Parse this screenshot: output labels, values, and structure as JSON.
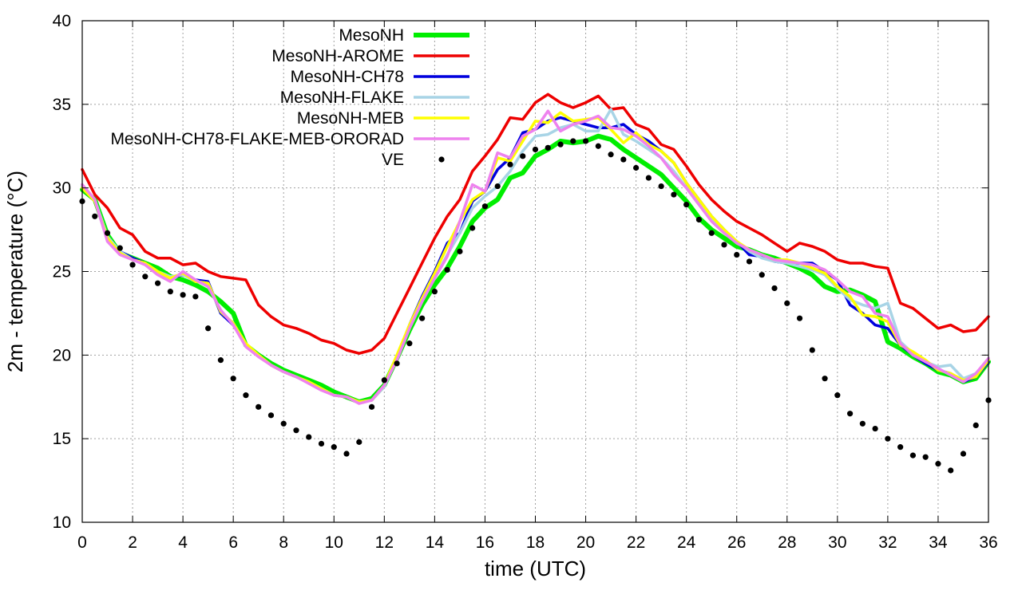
{
  "chart_data": {
    "type": "line",
    "xlabel": "time (UTC)",
    "ylabel": "2m - temperature (°C)",
    "xlim": [
      0,
      36
    ],
    "ylim": [
      10,
      40
    ],
    "xticks": [
      0,
      2,
      4,
      6,
      8,
      10,
      12,
      14,
      16,
      18,
      20,
      22,
      24,
      26,
      28,
      30,
      32,
      34,
      36
    ],
    "yticks": [
      10,
      15,
      20,
      25,
      30,
      35,
      40
    ],
    "grid": true,
    "legend_position": "top-center",
    "series": [
      {
        "name": "MesoNH",
        "color": "#00ee00",
        "line_weight": "thick",
        "marker": "none",
        "x": [
          0,
          0.5,
          1,
          1.5,
          2,
          2.5,
          3,
          3.5,
          4,
          4.5,
          5,
          5.5,
          6,
          6.5,
          7,
          7.5,
          8,
          8.5,
          9,
          9.5,
          10,
          10.5,
          11,
          11.5,
          12,
          12.5,
          13,
          13.5,
          14,
          14.5,
          15,
          15.5,
          16,
          16.5,
          17,
          17.5,
          18,
          18.5,
          19,
          19.5,
          20,
          20.5,
          21,
          21.5,
          22,
          22.5,
          23,
          23.5,
          24,
          24.5,
          25,
          25.5,
          26,
          26.5,
          27,
          27.5,
          28,
          28.5,
          29,
          29.5,
          30,
          30.5,
          31,
          31.5,
          32,
          32.5,
          33,
          33.5,
          34,
          34.5,
          35,
          35.5,
          36
        ],
        "y": [
          29.9,
          29.3,
          27.2,
          26.1,
          25.8,
          25.5,
          25.2,
          24.7,
          24.5,
          24.2,
          23.8,
          23.2,
          22.5,
          20.6,
          20.0,
          19.5,
          19.1,
          18.8,
          18.5,
          18.2,
          17.8,
          17.5,
          17.2,
          17.4,
          18.2,
          19.8,
          21.5,
          23.0,
          24.2,
          25.2,
          26.5,
          28.0,
          28.8,
          29.3,
          30.6,
          30.9,
          31.9,
          32.3,
          32.8,
          32.7,
          32.8,
          33.1,
          32.9,
          32.3,
          31.8,
          31.3,
          30.8,
          30.0,
          29.2,
          28.2,
          27.5,
          27.0,
          26.5,
          26.3,
          26.0,
          25.8,
          25.5,
          25.2,
          24.8,
          24.1,
          23.8,
          23.9,
          23.6,
          23.2,
          20.8,
          20.4,
          19.9,
          19.5,
          19.0,
          18.8,
          18.4,
          18.6,
          19.6
        ]
      },
      {
        "name": "MesoNH-AROME",
        "color": "#ee0000",
        "line_weight": "medium",
        "marker": "none",
        "x": [
          0,
          0.5,
          1,
          1.5,
          2,
          2.5,
          3,
          3.5,
          4,
          4.5,
          5,
          5.5,
          6,
          6.5,
          7,
          7.5,
          8,
          8.5,
          9,
          9.5,
          10,
          10.5,
          11,
          11.5,
          12,
          12.5,
          13,
          13.5,
          14,
          14.5,
          15,
          15.5,
          16,
          16.5,
          17,
          17.5,
          18,
          18.5,
          19,
          19.5,
          20,
          20.5,
          21,
          21.5,
          22,
          22.5,
          23,
          23.5,
          24,
          24.5,
          25,
          25.5,
          26,
          26.5,
          27,
          27.5,
          28,
          28.5,
          29,
          29.5,
          30,
          30.5,
          31,
          31.5,
          32,
          32.5,
          33,
          33.5,
          34,
          34.5,
          35,
          35.5,
          36
        ],
        "y": [
          31.1,
          29.6,
          28.8,
          27.6,
          27.2,
          26.2,
          25.8,
          25.8,
          25.4,
          25.5,
          25.0,
          24.7,
          24.6,
          24.5,
          23.0,
          22.3,
          21.8,
          21.6,
          21.3,
          20.9,
          20.7,
          20.3,
          20.1,
          20.3,
          21.0,
          22.5,
          24.0,
          25.5,
          27.0,
          28.3,
          29.3,
          31.0,
          31.9,
          32.9,
          34.2,
          34.1,
          35.1,
          35.6,
          35.1,
          34.8,
          35.1,
          35.5,
          34.7,
          34.8,
          33.8,
          33.5,
          32.6,
          32.3,
          31.3,
          30.2,
          29.3,
          28.6,
          28.0,
          27.6,
          27.2,
          26.7,
          26.2,
          26.7,
          26.5,
          26.2,
          25.7,
          25.5,
          25.5,
          25.3,
          25.2,
          23.1,
          22.8,
          22.2,
          21.6,
          21.8,
          21.4,
          21.5,
          22.3
        ]
      },
      {
        "name": "MesoNH-CH78",
        "color": "#0000dd",
        "line_weight": "medium",
        "marker": "none",
        "x": [
          0,
          0.5,
          1,
          1.5,
          2,
          2.5,
          3,
          3.5,
          4,
          4.5,
          5,
          5.5,
          6,
          6.5,
          7,
          7.5,
          8,
          8.5,
          9,
          9.5,
          10,
          10.5,
          11,
          11.5,
          12,
          12.5,
          13,
          13.5,
          14,
          14.5,
          15,
          15.5,
          16,
          16.5,
          17,
          17.5,
          18,
          18.5,
          19,
          19.5,
          20,
          20.5,
          21,
          21.5,
          22,
          22.5,
          23,
          23.5,
          24,
          24.5,
          25,
          25.5,
          26,
          26.5,
          27,
          27.5,
          28,
          28.5,
          29,
          29.5,
          30,
          30.5,
          31,
          31.5,
          32,
          32.5,
          33,
          33.5,
          34,
          34.5,
          35,
          35.5,
          36
        ],
        "y": [
          30.0,
          29.2,
          27.0,
          26.2,
          25.8,
          25.5,
          25.0,
          24.6,
          24.8,
          24.5,
          24.4,
          22.5,
          21.8,
          20.6,
          20.0,
          19.4,
          19.0,
          18.7,
          18.4,
          18.0,
          17.6,
          17.5,
          17.2,
          17.3,
          18.2,
          19.9,
          21.8,
          23.5,
          25.0,
          26.7,
          27.3,
          29.2,
          29.8,
          31.1,
          31.8,
          33.3,
          33.5,
          34.0,
          34.2,
          34.0,
          33.8,
          33.6,
          33.6,
          33.8,
          33.2,
          32.8,
          32.2,
          31.5,
          30.3,
          29.3,
          28.3,
          27.5,
          26.8,
          26.0,
          25.9,
          25.6,
          25.5,
          25.5,
          25.5,
          25.0,
          24.5,
          23.0,
          22.5,
          21.8,
          21.6,
          20.6,
          20.0,
          19.5,
          19.1,
          18.9,
          18.4,
          18.7,
          19.6
        ]
      },
      {
        "name": "MesoNH-FLAKE",
        "color": "#a8d4e6",
        "line_weight": "medium",
        "marker": "none",
        "x": [
          0,
          0.5,
          1,
          1.5,
          2,
          2.5,
          3,
          3.5,
          4,
          4.5,
          5,
          5.5,
          6,
          6.5,
          7,
          7.5,
          8,
          8.5,
          9,
          9.5,
          10,
          10.5,
          11,
          11.5,
          12,
          12.5,
          13,
          13.5,
          14,
          14.5,
          15,
          15.5,
          16,
          16.5,
          17,
          17.5,
          18,
          18.5,
          19,
          19.5,
          20,
          20.5,
          21,
          21.5,
          22,
          22.5,
          23,
          23.5,
          24,
          24.5,
          25,
          25.5,
          26,
          26.5,
          27,
          27.5,
          28,
          28.5,
          29,
          29.5,
          30,
          30.5,
          31,
          31.5,
          32,
          32.5,
          33,
          33.5,
          34,
          34.5,
          35,
          35.5,
          36
        ],
        "y": [
          30.1,
          29.3,
          27.1,
          26.2,
          25.7,
          25.5,
          25.0,
          24.7,
          24.8,
          24.4,
          24.3,
          22.6,
          21.9,
          20.6,
          20.0,
          19.4,
          19.0,
          18.7,
          18.4,
          18.0,
          17.6,
          17.5,
          17.2,
          17.3,
          18.1,
          19.8,
          21.6,
          23.2,
          24.6,
          26.0,
          27.3,
          28.8,
          29.5,
          30.1,
          31.0,
          32.2,
          33.1,
          33.2,
          33.6,
          33.8,
          33.4,
          33.4,
          34.7,
          33.2,
          32.8,
          32.3,
          31.8,
          31.0,
          30.0,
          29.0,
          28.2,
          27.5,
          26.8,
          26.2,
          25.8,
          25.6,
          25.5,
          25.3,
          25.1,
          24.8,
          24.0,
          23.3,
          23.0,
          22.8,
          23.1,
          20.8,
          20.1,
          19.6,
          19.3,
          19.4,
          18.6,
          18.9,
          19.7
        ]
      },
      {
        "name": "MesoNH-MEB",
        "color": "#ffff00",
        "line_weight": "medium",
        "marker": "none",
        "x": [
          0,
          0.5,
          1,
          1.5,
          2,
          2.5,
          3,
          3.5,
          4,
          4.5,
          5,
          5.5,
          6,
          6.5,
          7,
          7.5,
          8,
          8.5,
          9,
          9.5,
          10,
          10.5,
          11,
          11.5,
          12,
          12.5,
          13,
          13.5,
          14,
          14.5,
          15,
          15.5,
          16,
          16.5,
          17,
          17.5,
          18,
          18.5,
          19,
          19.5,
          20,
          20.5,
          21,
          21.5,
          22,
          22.5,
          23,
          23.5,
          24,
          24.5,
          25,
          25.5,
          26,
          26.5,
          27,
          27.5,
          28,
          28.5,
          29,
          29.5,
          30,
          30.5,
          31,
          31.5,
          32,
          32.5,
          33,
          33.5,
          34,
          34.5,
          35,
          35.5,
          36
        ],
        "y": [
          30.0,
          29.2,
          27.0,
          26.1,
          25.7,
          25.5,
          25.0,
          24.6,
          24.9,
          24.4,
          24.3,
          22.6,
          21.9,
          20.7,
          20.0,
          19.4,
          19.0,
          18.7,
          18.4,
          18.0,
          17.6,
          17.5,
          17.2,
          17.3,
          18.2,
          20.0,
          21.8,
          23.4,
          24.9,
          26.5,
          28.0,
          29.3,
          29.8,
          31.8,
          31.6,
          32.8,
          34.0,
          33.9,
          34.5,
          34.0,
          34.1,
          34.2,
          33.5,
          32.7,
          33.3,
          32.6,
          32.2,
          31.5,
          30.3,
          29.3,
          28.3,
          27.5,
          26.8,
          26.3,
          26.0,
          25.7,
          25.7,
          25.5,
          25.2,
          24.9,
          24.1,
          23.5,
          22.4,
          22.3,
          22.0,
          20.6,
          20.2,
          19.7,
          19.1,
          18.9,
          18.5,
          18.7,
          19.7
        ]
      },
      {
        "name": "MesoNH-CH78-FLAKE-MEB-ORORAD",
        "color": "#ee82ee",
        "line_weight": "medium",
        "marker": "none",
        "x": [
          0,
          0.5,
          1,
          1.5,
          2,
          2.5,
          3,
          3.5,
          4,
          4.5,
          5,
          5.5,
          6,
          6.5,
          7,
          7.5,
          8,
          8.5,
          9,
          9.5,
          10,
          10.5,
          11,
          11.5,
          12,
          12.5,
          13,
          13.5,
          14,
          14.5,
          15,
          15.5,
          16,
          16.5,
          17,
          17.5,
          18,
          18.5,
          19,
          19.5,
          20,
          20.5,
          21,
          21.5,
          22,
          22.5,
          23,
          23.5,
          24,
          24.5,
          25,
          25.5,
          26,
          26.5,
          27,
          27.5,
          28,
          28.5,
          29,
          29.5,
          30,
          30.5,
          31,
          31.5,
          32,
          32.5,
          33,
          33.5,
          34,
          34.5,
          35,
          35.5,
          36
        ],
        "y": [
          30.2,
          29.3,
          26.8,
          26.0,
          25.7,
          25.4,
          24.8,
          24.4,
          25.0,
          24.5,
          24.1,
          22.7,
          21.8,
          20.5,
          19.9,
          19.4,
          19.0,
          18.7,
          18.3,
          17.9,
          17.6,
          17.5,
          17.1,
          17.3,
          18.2,
          19.7,
          21.6,
          23.2,
          24.6,
          25.9,
          28.0,
          30.2,
          29.8,
          32.1,
          31.8,
          33.1,
          33.5,
          34.6,
          33.4,
          33.8,
          34.0,
          34.3,
          33.6,
          33.5,
          33.1,
          32.5,
          31.8,
          30.8,
          30.0,
          29.0,
          28.0,
          27.3,
          26.7,
          26.3,
          26.0,
          25.7,
          25.6,
          25.5,
          25.4,
          25.1,
          24.5,
          23.8,
          23.5,
          22.5,
          22.3,
          20.7,
          20.0,
          19.6,
          19.2,
          18.8,
          18.4,
          18.9,
          19.8
        ]
      },
      {
        "name": "VE",
        "color": "#000000",
        "line_weight": "none",
        "marker": "dot",
        "x": [
          0,
          0.5,
          1,
          1.5,
          2,
          2.5,
          3,
          3.5,
          4,
          4.5,
          5,
          5.5,
          6,
          6.5,
          7,
          7.5,
          8,
          8.5,
          9,
          9.5,
          10,
          10.5,
          11,
          11.5,
          12,
          12.5,
          13,
          13.5,
          14,
          14.5,
          15,
          15.5,
          16,
          16.5,
          17,
          17.5,
          18,
          18.5,
          19,
          19.5,
          20,
          20.5,
          21,
          21.5,
          22,
          22.5,
          23,
          23.5,
          24,
          24.5,
          25,
          25.5,
          26,
          26.5,
          27,
          27.5,
          28,
          28.5,
          29,
          29.5,
          30,
          30.5,
          31,
          31.5,
          32,
          32.5,
          33,
          33.5,
          34,
          34.5,
          35,
          35.5,
          36
        ],
        "y": [
          29.2,
          28.3,
          27.3,
          26.4,
          25.4,
          24.7,
          24.3,
          23.8,
          23.6,
          23.5,
          21.6,
          19.7,
          18.6,
          17.6,
          16.9,
          16.4,
          15.9,
          15.5,
          15.1,
          14.7,
          14.5,
          14.1,
          14.8,
          16.9,
          18.5,
          19.5,
          20.7,
          22.2,
          23.8,
          25.1,
          26.2,
          27.6,
          28.9,
          30.1,
          31.4,
          31.9,
          32.3,
          32.4,
          32.6,
          32.8,
          32.8,
          32.5,
          32.0,
          31.7,
          31.2,
          30.6,
          30.1,
          29.6,
          29.0,
          28.1,
          27.3,
          26.6,
          26.0,
          25.6,
          24.8,
          24.0,
          23.1,
          22.2,
          20.3,
          18.6,
          17.6,
          16.5,
          15.9,
          15.6,
          15.0,
          14.5,
          14.0,
          13.9,
          13.5,
          13.1,
          14.1,
          15.8,
          17.3
        ]
      }
    ]
  }
}
